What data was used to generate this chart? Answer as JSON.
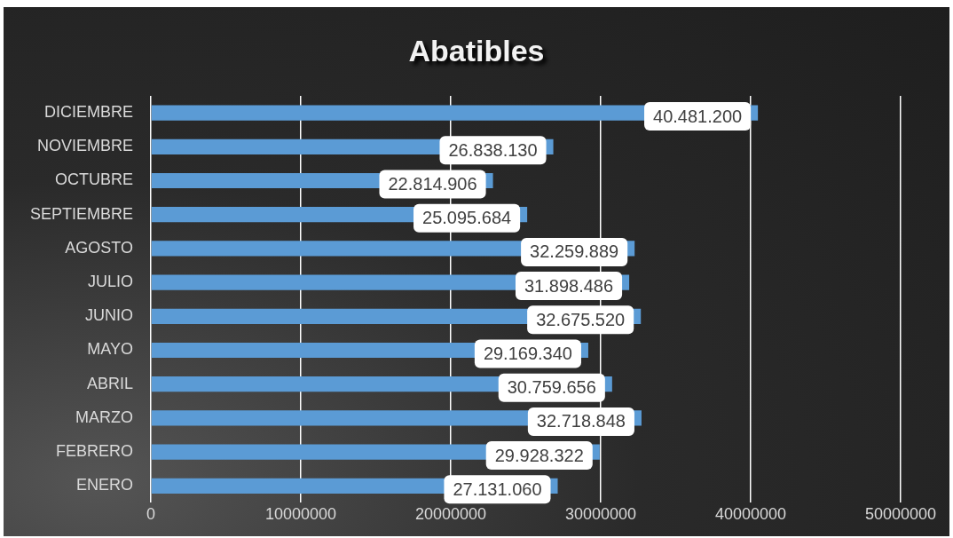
{
  "chart_data": {
    "type": "bar",
    "orientation": "horizontal",
    "title": "Abatibles",
    "categories": [
      "DICIEMBRE",
      "NOVIEMBRE",
      "OCTUBRE",
      "SEPTIEMBRE",
      "AGOSTO",
      "JULIO",
      "JUNIO",
      "MAYO",
      "ABRIL",
      "MARZO",
      "FEBRERO",
      "ENERO"
    ],
    "values": [
      40481200,
      26838130,
      22814906,
      25095684,
      32259889,
      31898486,
      32675520,
      29169340,
      30759656,
      32718848,
      29928322,
      27131060
    ],
    "value_labels": [
      "40.481.200",
      "26.838.130",
      "22.814.906",
      "25.095.684",
      "32.259.889",
      "31.898.486",
      "32.675.520",
      "29.169.340",
      "30.759.656",
      "32.718.848",
      "29.928.322",
      "27.131.060"
    ],
    "color": "#5b9bd5",
    "xlim": [
      0,
      50000000
    ],
    "xticks": [
      0,
      10000000,
      20000000,
      30000000,
      40000000,
      50000000
    ],
    "grid": "x",
    "legend": false
  }
}
